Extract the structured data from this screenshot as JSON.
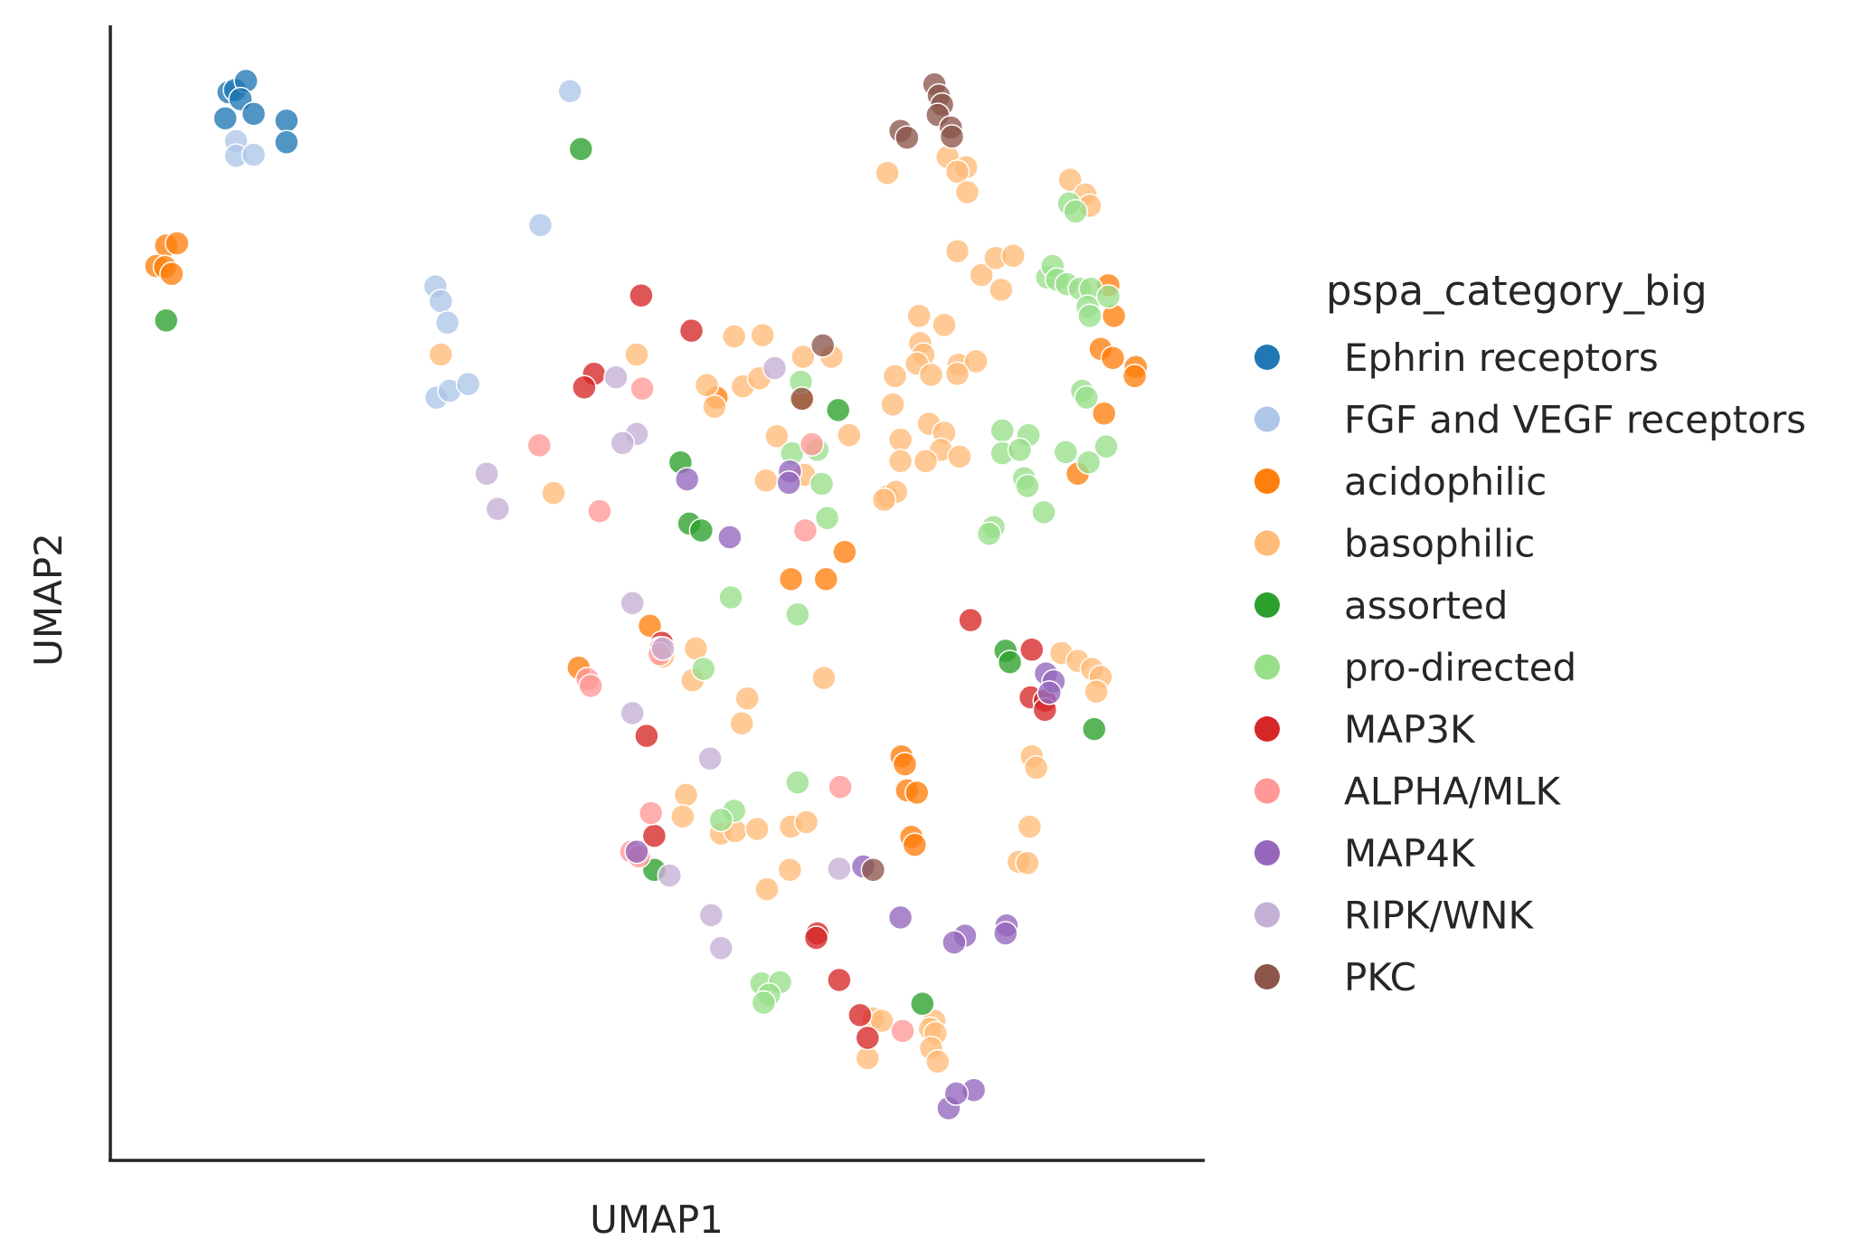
{
  "chart_data": {
    "type": "scatter",
    "xlabel": "UMAP1",
    "ylabel": "UMAP2",
    "xlim": [
      0,
      100
    ],
    "ylim": [
      0,
      100
    ],
    "grid": false,
    "legend_placement": "right",
    "legend_title": "pspa_category_big",
    "series": [
      {
        "name": "Ephrin receptors",
        "color": "#1f77b4",
        "points": [
          [
            10.8,
            94.1
          ],
          [
            11.4,
            94.3
          ],
          [
            12.4,
            95.1
          ],
          [
            11.9,
            93.5
          ],
          [
            13.1,
            92.2
          ],
          [
            10.5,
            91.8
          ],
          [
            16.1,
            91.6
          ],
          [
            16.1,
            89.7
          ]
        ]
      },
      {
        "name": "FGF and VEGF receptors",
        "color": "#aec7e8",
        "points": [
          [
            11.5,
            89.8
          ],
          [
            11.5,
            88.5
          ],
          [
            13.1,
            88.6
          ],
          [
            42.0,
            94.2
          ],
          [
            39.3,
            82.4
          ],
          [
            29.7,
            77.0
          ],
          [
            30.2,
            75.7
          ],
          [
            30.8,
            73.8
          ],
          [
            29.8,
            67.2
          ],
          [
            31.0,
            67.8
          ],
          [
            32.7,
            68.4
          ]
        ]
      },
      {
        "name": "acidophilic",
        "color": "#ff7f0e",
        "points": [
          [
            5.1,
            80.6
          ],
          [
            6.1,
            80.8
          ],
          [
            4.2,
            78.8
          ],
          [
            5.0,
            78.7
          ],
          [
            5.6,
            78.1
          ],
          [
            55.4,
            67.2
          ],
          [
            63.3,
            67.0
          ],
          [
            49.3,
            47.1
          ],
          [
            62.2,
            51.2
          ],
          [
            65.4,
            51.2
          ],
          [
            67.1,
            53.6
          ],
          [
            42.8,
            43.4
          ],
          [
            72.3,
            35.6
          ],
          [
            72.6,
            34.9
          ],
          [
            72.8,
            32.6
          ],
          [
            73.7,
            32.4
          ],
          [
            73.2,
            28.5
          ],
          [
            73.5,
            27.8
          ],
          [
            91.2,
            77.1
          ],
          [
            91.7,
            74.4
          ],
          [
            90.5,
            71.5
          ],
          [
            91.6,
            70.7
          ],
          [
            93.7,
            69.9
          ],
          [
            93.6,
            69.1
          ],
          [
            90.8,
            65.8
          ],
          [
            88.4,
            60.5
          ]
        ]
      },
      {
        "name": "basophilic",
        "color": "#ffbb78",
        "points": [
          [
            30.2,
            71.0
          ],
          [
            48.1,
            71.0
          ],
          [
            57.0,
            72.6
          ],
          [
            59.6,
            72.7
          ],
          [
            54.5,
            68.3
          ],
          [
            55.2,
            66.4
          ],
          [
            57.8,
            68.2
          ],
          [
            59.3,
            68.9
          ],
          [
            63.3,
            70.8
          ],
          [
            65.9,
            70.8
          ],
          [
            60.9,
            63.8
          ],
          [
            59.9,
            59.9
          ],
          [
            63.4,
            60.4
          ],
          [
            67.5,
            63.9
          ],
          [
            73.9,
            74.4
          ],
          [
            74.0,
            72.0
          ],
          [
            74.3,
            71.0
          ],
          [
            76.2,
            73.6
          ],
          [
            73.7,
            70.2
          ],
          [
            75.0,
            69.2
          ],
          [
            77.5,
            70.1
          ],
          [
            79.1,
            70.4
          ],
          [
            77.4,
            69.3
          ],
          [
            71.7,
            69.1
          ],
          [
            71.5,
            66.6
          ],
          [
            72.2,
            63.5
          ],
          [
            74.8,
            64.9
          ],
          [
            76.2,
            64.1
          ],
          [
            75.9,
            62.6
          ],
          [
            74.5,
            61.6
          ],
          [
            72.2,
            61.6
          ],
          [
            71.0,
            58.5
          ],
          [
            71.8,
            58.9
          ],
          [
            70.7,
            58.2
          ],
          [
            40.5,
            58.8
          ],
          [
            77.6,
            62.0
          ],
          [
            53.5,
            45.1
          ],
          [
            53.2,
            42.3
          ],
          [
            50.6,
            45.3
          ],
          [
            50.5,
            44.4
          ],
          [
            65.2,
            42.5
          ],
          [
            58.2,
            40.7
          ],
          [
            57.7,
            38.5
          ],
          [
            71.0,
            87.0
          ],
          [
            76.5,
            88.4
          ],
          [
            78.2,
            87.5
          ],
          [
            77.4,
            87.1
          ],
          [
            78.3,
            85.3
          ],
          [
            77.4,
            80.1
          ],
          [
            79.6,
            78.0
          ],
          [
            80.9,
            79.5
          ],
          [
            82.5,
            79.7
          ],
          [
            81.4,
            76.7
          ],
          [
            87.7,
            86.4
          ],
          [
            89.1,
            85.1
          ],
          [
            89.5,
            84.1
          ],
          [
            86.9,
            44.7
          ],
          [
            88.4,
            44.0
          ],
          [
            89.7,
            43.3
          ],
          [
            90.5,
            42.6
          ],
          [
            90.1,
            41.3
          ],
          [
            84.2,
            35.6
          ],
          [
            84.6,
            34.6
          ],
          [
            84.0,
            29.4
          ],
          [
            83.0,
            26.3
          ],
          [
            83.8,
            26.2
          ],
          [
            52.6,
            32.2
          ],
          [
            52.3,
            30.3
          ],
          [
            55.8,
            28.8
          ],
          [
            57.1,
            29.0
          ],
          [
            59.1,
            29.2
          ],
          [
            62.2,
            29.4
          ],
          [
            63.6,
            29.8
          ],
          [
            62.1,
            25.6
          ],
          [
            60.0,
            23.9
          ],
          [
            69.7,
            12.5
          ],
          [
            70.5,
            12.3
          ],
          [
            69.2,
            9.0
          ],
          [
            75.3,
            12.3
          ],
          [
            74.9,
            11.6
          ],
          [
            75.4,
            11.2
          ],
          [
            75.0,
            9.9
          ],
          [
            75.6,
            8.7
          ]
        ]
      },
      {
        "name": "assorted",
        "color": "#2ca02c",
        "points": [
          [
            5.1,
            74.0
          ],
          [
            43.0,
            89.1
          ],
          [
            52.1,
            61.5
          ],
          [
            52.9,
            56.1
          ],
          [
            54.0,
            55.5
          ],
          [
            66.5,
            66.1
          ],
          [
            81.8,
            44.9
          ],
          [
            82.2,
            43.9
          ],
          [
            89.9,
            38.0
          ],
          [
            49.7,
            25.6
          ],
          [
            74.2,
            13.8
          ]
        ]
      },
      {
        "name": "pro-directed",
        "color": "#98df8a",
        "points": [
          [
            87.6,
            84.3
          ],
          [
            88.2,
            83.6
          ],
          [
            85.6,
            77.8
          ],
          [
            86.1,
            78.8
          ],
          [
            86.5,
            77.6
          ],
          [
            87.4,
            77.2
          ],
          [
            88.6,
            76.8
          ],
          [
            89.6,
            76.8
          ],
          [
            89.3,
            75.2
          ],
          [
            89.5,
            74.4
          ],
          [
            91.2,
            76.1
          ],
          [
            88.8,
            67.8
          ],
          [
            89.2,
            67.2
          ],
          [
            81.5,
            64.3
          ],
          [
            83.9,
            63.9
          ],
          [
            81.5,
            62.3
          ],
          [
            83.1,
            62.6
          ],
          [
            87.3,
            62.4
          ],
          [
            89.4,
            61.5
          ],
          [
            91.0,
            62.9
          ],
          [
            83.5,
            60.1
          ],
          [
            83.8,
            59.4
          ],
          [
            85.3,
            57.1
          ],
          [
            80.7,
            55.8
          ],
          [
            80.3,
            55.2
          ],
          [
            62.3,
            62.3
          ],
          [
            64.6,
            62.6
          ],
          [
            65.0,
            59.6
          ],
          [
            65.5,
            56.6
          ],
          [
            56.7,
            49.6
          ],
          [
            62.8,
            48.1
          ],
          [
            63.1,
            68.6
          ],
          [
            54.2,
            43.3
          ],
          [
            62.8,
            33.3
          ],
          [
            57.0,
            30.8
          ],
          [
            55.8,
            30.0
          ],
          [
            59.5,
            15.6
          ],
          [
            61.2,
            15.7
          ],
          [
            60.2,
            14.6
          ],
          [
            59.7,
            13.9
          ]
        ]
      },
      {
        "name": "MAP3K",
        "color": "#d62728",
        "points": [
          [
            48.5,
            76.2
          ],
          [
            53.1,
            73.1
          ],
          [
            44.2,
            69.3
          ],
          [
            43.3,
            68.1
          ],
          [
            78.6,
            47.6
          ],
          [
            50.4,
            45.6
          ],
          [
            50.2,
            45.1
          ],
          [
            84.2,
            45.0
          ],
          [
            84.1,
            40.8
          ],
          [
            85.4,
            40.5
          ],
          [
            85.4,
            39.7
          ],
          [
            49.0,
            37.4
          ],
          [
            49.7,
            28.6
          ],
          [
            64.6,
            20.0
          ],
          [
            64.5,
            19.6
          ],
          [
            66.6,
            15.9
          ],
          [
            68.5,
            12.8
          ],
          [
            69.2,
            10.8
          ]
        ]
      },
      {
        "name": "ALPHA/MLK",
        "color": "#ff9896",
        "points": [
          [
            48.6,
            68.0
          ],
          [
            39.2,
            63.0
          ],
          [
            44.7,
            57.2
          ],
          [
            64.1,
            63.1
          ],
          [
            63.5,
            55.5
          ],
          [
            50.3,
            45.1
          ],
          [
            50.2,
            44.6
          ],
          [
            43.6,
            42.4
          ],
          [
            43.9,
            41.8
          ],
          [
            49.4,
            30.6
          ],
          [
            66.7,
            32.9
          ],
          [
            47.6,
            27.2
          ],
          [
            48.3,
            26.8
          ],
          [
            72.4,
            11.4
          ]
        ]
      },
      {
        "name": "MAP4K",
        "color": "#9467bd",
        "points": [
          [
            52.7,
            60.0
          ],
          [
            62.1,
            60.7
          ],
          [
            62.0,
            59.7
          ],
          [
            56.6,
            54.9
          ],
          [
            85.5,
            42.9
          ],
          [
            86.2,
            42.2
          ],
          [
            85.8,
            41.2
          ],
          [
            48.1,
            27.2
          ],
          [
            68.8,
            25.9
          ],
          [
            72.2,
            21.4
          ],
          [
            78.1,
            19.8
          ],
          [
            77.1,
            19.2
          ],
          [
            81.9,
            20.7
          ],
          [
            81.8,
            20.0
          ],
          [
            78.9,
            6.2
          ],
          [
            76.6,
            4.6
          ],
          [
            77.3,
            5.9
          ]
        ]
      },
      {
        "name": "RIPK/WNK",
        "color": "#c5b0d5",
        "points": [
          [
            46.2,
            69.0
          ],
          [
            60.7,
            69.8
          ],
          [
            48.1,
            64.0
          ],
          [
            46.8,
            63.2
          ],
          [
            34.4,
            60.5
          ],
          [
            35.4,
            57.4
          ],
          [
            47.7,
            49.1
          ],
          [
            50.5,
            45.1
          ],
          [
            47.7,
            39.4
          ],
          [
            54.8,
            35.4
          ],
          [
            51.1,
            25.1
          ],
          [
            54.9,
            21.6
          ],
          [
            55.8,
            18.7
          ],
          [
            66.6,
            25.7
          ]
        ]
      },
      {
        "name": "PKC",
        "color": "#8c564b",
        "points": [
          [
            75.3,
            94.8
          ],
          [
            75.7,
            93.8
          ],
          [
            76.0,
            93.0
          ],
          [
            75.6,
            92.1
          ],
          [
            76.8,
            91.0
          ],
          [
            76.9,
            90.2
          ],
          [
            72.2,
            90.7
          ],
          [
            72.8,
            90.1
          ],
          [
            65.1,
            71.8
          ],
          [
            63.2,
            67.1
          ],
          [
            69.7,
            25.6
          ]
        ]
      }
    ]
  }
}
